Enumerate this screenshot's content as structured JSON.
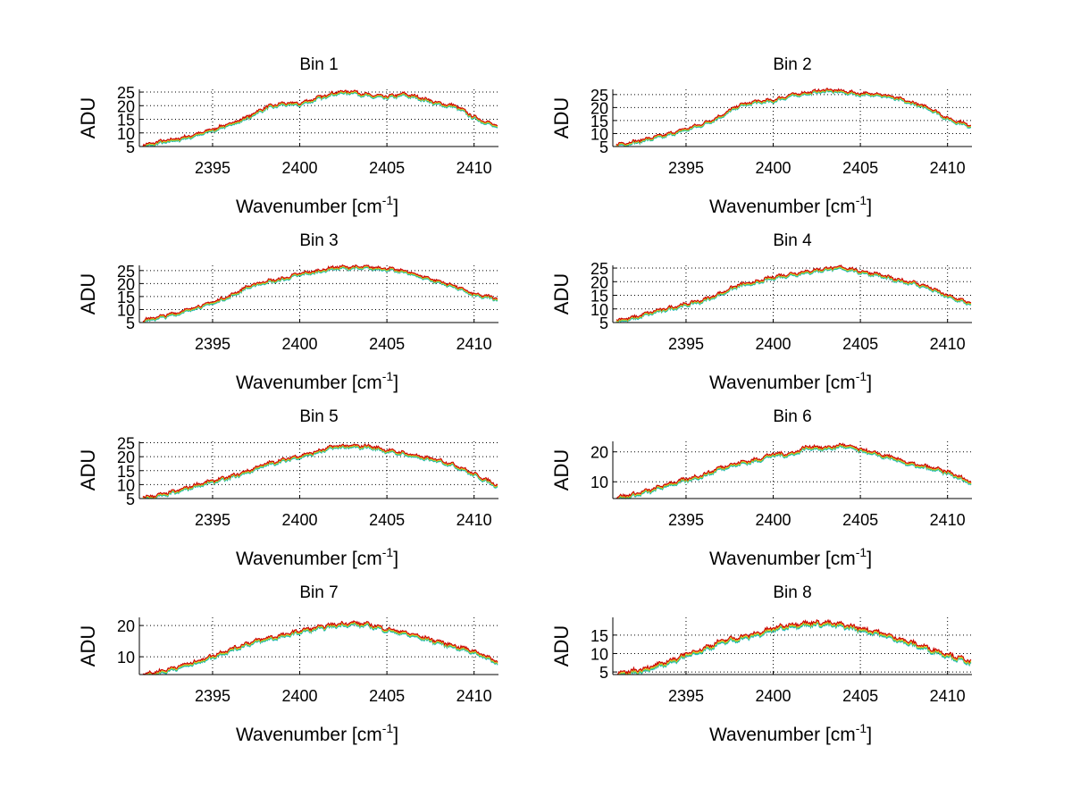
{
  "chart_data": {
    "type": "line",
    "layout": "4x2 subplots",
    "xlabel": "Wavenumber [cm",
    "xlabel_sup": "-1",
    "xlabel_end": "]",
    "ylabel": "ADU",
    "xlim": [
      2390.8,
      2411.4
    ],
    "xticks": [
      2395,
      2400,
      2405,
      2410
    ],
    "grid": true,
    "x": [
      2391,
      2392,
      2393,
      2394,
      2395,
      2396,
      2397,
      2398,
      2399,
      2400,
      2401,
      2402,
      2403,
      2404,
      2405,
      2406,
      2407,
      2408,
      2409,
      2410,
      2411
    ],
    "series_colors": [
      "#16b8c8",
      "#4cc24c",
      "#e8e030",
      "#f08020",
      "#c80000"
    ],
    "series_offsets": [
      -0.9,
      -0.65,
      -0.4,
      -0.2,
      0
    ],
    "panels": [
      {
        "title": "Bin 1",
        "ylim": [
          5,
          26
        ],
        "yticks": [
          5,
          10,
          15,
          20,
          25
        ],
        "values": [
          5.5,
          7,
          8,
          9.5,
          11.5,
          13.5,
          16,
          19.5,
          21,
          21,
          23,
          25,
          25.5,
          24,
          23.5,
          24.5,
          23,
          21,
          20,
          16,
          13.5
        ]
      },
      {
        "title": "Bin 2",
        "ylim": [
          5,
          27
        ],
        "yticks": [
          5,
          10,
          15,
          20,
          25
        ],
        "values": [
          6,
          7,
          8.5,
          10,
          12,
          14,
          17,
          21,
          22.5,
          23,
          25,
          26,
          27,
          26.5,
          25.5,
          25.5,
          24,
          22,
          20,
          16,
          14
        ]
      },
      {
        "title": "Bin 3",
        "ylim": [
          5,
          27
        ],
        "yticks": [
          5,
          10,
          15,
          20,
          25
        ],
        "values": [
          6,
          7.5,
          9,
          11,
          13,
          15.5,
          19,
          21,
          22,
          24,
          25,
          26.5,
          26.5,
          26.5,
          26,
          25,
          23,
          21,
          19,
          16,
          15
        ]
      },
      {
        "title": "Bin 4",
        "ylim": [
          5,
          26
        ],
        "yticks": [
          5,
          10,
          15,
          20,
          25
        ],
        "values": [
          6,
          7,
          9,
          10.5,
          12,
          13.5,
          16,
          19,
          20,
          22,
          23,
          24,
          25,
          25.5,
          24,
          23,
          21,
          20,
          18,
          15,
          13
        ]
      },
      {
        "title": "Bin 5",
        "ylim": [
          5,
          25.5
        ],
        "yticks": [
          5,
          10,
          15,
          20,
          25
        ],
        "values": [
          5.5,
          6.5,
          8,
          10,
          11.5,
          13,
          15,
          17.5,
          19,
          20.5,
          22,
          24,
          24,
          24,
          22.5,
          21.5,
          20,
          19,
          17,
          14,
          11
        ]
      },
      {
        "title": "Bin 6",
        "ylim": [
          4.4,
          23.5
        ],
        "yticks": [
          10,
          20
        ],
        "values": [
          5,
          6,
          7.5,
          9.5,
          11,
          12.5,
          15,
          16.5,
          17.5,
          19.5,
          19.5,
          22,
          21.5,
          22.5,
          21,
          19.5,
          18,
          16,
          15,
          13.5,
          11
        ]
      },
      {
        "title": "Bin 7",
        "ylim": [
          4.3,
          22.6
        ],
        "yticks": [
          10,
          20
        ],
        "values": [
          4.5,
          5.5,
          7,
          8.5,
          10.5,
          12.5,
          14.5,
          16,
          17,
          18.5,
          19.5,
          20.5,
          21,
          20.5,
          19,
          18,
          16.5,
          15,
          13.5,
          12,
          9.5
        ]
      },
      {
        "title": "Bin 8",
        "ylim": [
          4.3,
          19.8
        ],
        "yticks": [
          5,
          10,
          15
        ],
        "values": [
          4.5,
          5.5,
          6.5,
          8,
          10,
          11.5,
          13.5,
          14.5,
          15.5,
          17,
          18,
          18.5,
          18.5,
          18,
          17,
          16,
          14.5,
          13,
          11.5,
          10,
          8.5
        ]
      }
    ]
  }
}
